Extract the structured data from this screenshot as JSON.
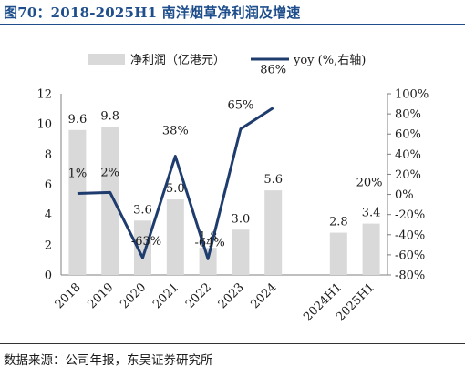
{
  "title": "图70：2018-2025H1 南洋烟草净利润及增速",
  "source": "数据来源：公司年报，东吴证券研究所",
  "chart_data": {
    "type": "bar+line",
    "categories": [
      "2018",
      "2019",
      "2020",
      "2021",
      "2022",
      "2023",
      "2024",
      "",
      "2024H1",
      "2025H1"
    ],
    "series": [
      {
        "name": "净利润（亿港元）",
        "kind": "bar",
        "axis": "left",
        "values": [
          9.6,
          9.8,
          3.6,
          5.0,
          1.8,
          3.0,
          5.6,
          null,
          2.8,
          3.4
        ],
        "labels": [
          "9.6",
          "9.8",
          "3.6",
          "5.0",
          "1.8",
          "3.0",
          "5.6",
          "",
          "2.8",
          "3.4"
        ],
        "color": "#d9d9d9"
      },
      {
        "name": "yoy (%,右轴)",
        "kind": "line",
        "axis": "right",
        "values": [
          1,
          2,
          -63,
          38,
          -64,
          65,
          86,
          null,
          null,
          20
        ],
        "labels": [
          "1%",
          "2%",
          "-63%",
          "38%",
          "-64%",
          "65%",
          "86%",
          "",
          "",
          "20%"
        ],
        "color": "#1f3c6e"
      }
    ],
    "y_left": {
      "min": 0,
      "max": 12,
      "ticks": [
        "0",
        "2",
        "4",
        "6",
        "8",
        "10",
        "12"
      ]
    },
    "y_right": {
      "min": -80,
      "max": 100,
      "ticks": [
        "-80%",
        "-60%",
        "-40%",
        "-20%",
        "0%",
        "20%",
        "40%",
        "60%",
        "80%",
        "100%"
      ]
    },
    "legend_position": "top",
    "grid": false
  }
}
